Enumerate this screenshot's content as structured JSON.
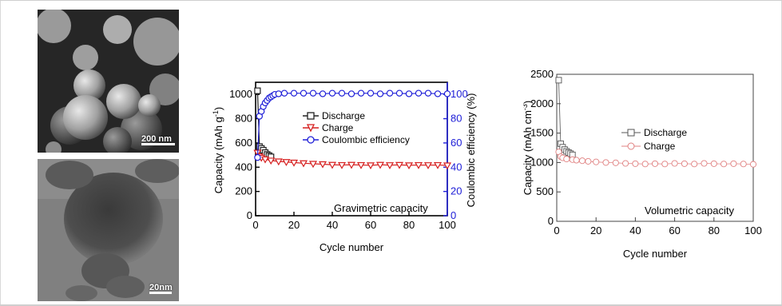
{
  "micrographs": {
    "sem": {
      "scale_label": "200 nm"
    },
    "tem": {
      "scale_label": "20nm"
    }
  },
  "chart_data": [
    {
      "type": "scatter",
      "title": "",
      "annotation": "Gravimetric capacity",
      "xlabel": "Cycle number",
      "ylabel": "Capacity (mAh g",
      "ylabel_sup": "-1",
      "ylabel_close": ")",
      "y2label": "Coulombic efficiency (%)",
      "xlim": [
        0,
        100
      ],
      "ylim": [
        0,
        1100
      ],
      "y2lim": [
        0,
        110
      ],
      "xticks": [
        0,
        20,
        40,
        60,
        80,
        100
      ],
      "yticks": [
        0,
        200,
        400,
        600,
        800,
        1000
      ],
      "y2ticks": [
        0,
        20,
        40,
        60,
        80,
        100
      ],
      "legend_position": "center-left",
      "series": [
        {
          "name": "Discharge",
          "marker": "square",
          "color": "#222222",
          "axis": "left",
          "x": [
            1,
            2,
            3,
            4,
            5,
            6,
            7,
            8
          ],
          "y": [
            1030,
            570,
            555,
            540,
            520,
            505,
            495,
            485
          ]
        },
        {
          "name": "Charge",
          "marker": "triangle-down",
          "color": "#d62020",
          "axis": "left",
          "x": [
            1,
            2,
            3,
            5,
            8,
            12,
            16,
            20,
            25,
            30,
            35,
            40,
            45,
            50,
            55,
            60,
            65,
            70,
            75,
            80,
            85,
            90,
            95,
            100
          ],
          "y": [
            520,
            490,
            478,
            465,
            455,
            448,
            443,
            438,
            433,
            428,
            425,
            420,
            418,
            420,
            418,
            416,
            420,
            417,
            419,
            416,
            418,
            417,
            418,
            415
          ]
        },
        {
          "name": "Coulombic efficiency",
          "marker": "circle",
          "color": "#2020d8",
          "axis": "right",
          "x": [
            1,
            2,
            3,
            4,
            5,
            6,
            7,
            8,
            9,
            10,
            12,
            15,
            20,
            25,
            30,
            35,
            40,
            45,
            50,
            55,
            60,
            65,
            70,
            75,
            80,
            85,
            90,
            95,
            100
          ],
          "y": [
            48,
            82,
            86,
            90,
            93,
            95,
            97,
            98,
            99,
            100,
            100.5,
            101,
            101,
            101,
            101,
            100.5,
            101,
            101,
            100.5,
            101,
            101,
            100.5,
            101,
            101,
            100.5,
            101,
            101,
            100.5,
            100.5
          ]
        }
      ]
    },
    {
      "type": "scatter",
      "title": "",
      "annotation": "Volumetric capacity",
      "xlabel": "Cycle number",
      "ylabel": "Capacity (mAh cm",
      "ylabel_sup": "-3",
      "ylabel_close": ")",
      "xlim": [
        0,
        100
      ],
      "ylim": [
        0,
        2500
      ],
      "xticks": [
        0,
        20,
        40,
        60,
        80,
        100
      ],
      "yticks": [
        0,
        500,
        1000,
        1500,
        2000,
        2500
      ],
      "legend_position": "center",
      "series": [
        {
          "name": "Discharge",
          "marker": "square",
          "color": "#555555",
          "x": [
            1,
            2,
            3,
            4,
            5,
            6,
            7,
            8
          ],
          "y": [
            2400,
            1320,
            1260,
            1220,
            1190,
            1170,
            1150,
            1130
          ]
        },
        {
          "name": "Charge",
          "marker": "circle",
          "color": "#e08080",
          "x": [
            1,
            2,
            3,
            5,
            8,
            10,
            13,
            16,
            20,
            25,
            30,
            35,
            40,
            45,
            50,
            55,
            60,
            65,
            70,
            75,
            80,
            85,
            90,
            95,
            100
          ],
          "y": [
            1180,
            1100,
            1080,
            1060,
            1050,
            1040,
            1030,
            1020,
            1010,
            1000,
            995,
            985,
            980,
            975,
            980,
            975,
            985,
            980,
            975,
            985,
            980,
            975,
            980,
            975,
            970
          ]
        }
      ]
    }
  ]
}
